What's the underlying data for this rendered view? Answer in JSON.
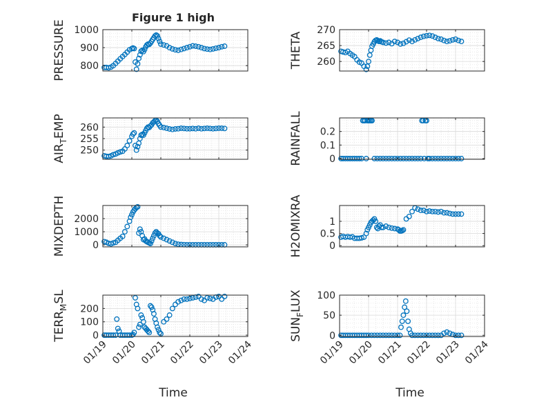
{
  "figure": {
    "title": "Figure 1 high"
  },
  "style": {
    "marker_color": "#0072BD",
    "axis_color": "#262626",
    "grid_color": "#d9d9d9"
  },
  "xaxis": {
    "label": "Time",
    "ticks": [
      "01/19",
      "01/20",
      "01/21",
      "01/22",
      "01/23",
      "01/24"
    ],
    "range": [
      0,
      5
    ]
  },
  "chart_data": [
    {
      "type": "scatter",
      "ylabel": "PRESSURE",
      "ylim": [
        770,
        1000
      ],
      "yticks": [
        "800",
        "900",
        "1000"
      ],
      "ytick_values": [
        800,
        900,
        1000
      ],
      "x": [
        0.05,
        0.12,
        0.2,
        0.28,
        0.36,
        0.44,
        0.52,
        0.6,
        0.68,
        0.76,
        0.84,
        0.92,
        1.0,
        1.04,
        1.08,
        1.12,
        1.16,
        1.2,
        1.24,
        1.28,
        1.32,
        1.36,
        1.4,
        1.44,
        1.48,
        1.52,
        1.56,
        1.6,
        1.64,
        1.68,
        1.72,
        1.76,
        1.8,
        1.84,
        1.88,
        1.92,
        1.96,
        2.0,
        2.1,
        2.2,
        2.3,
        2.4,
        2.5,
        2.6,
        2.7,
        2.8,
        2.9,
        3.0,
        3.1,
        3.2,
        3.3,
        3.4,
        3.5,
        3.6,
        3.7,
        3.8,
        3.9,
        4.0,
        4.1,
        4.2
      ],
      "y": [
        790,
        790,
        788,
        792,
        800,
        812,
        825,
        838,
        850,
        862,
        875,
        888,
        895,
        898,
        895,
        820,
        780,
        810,
        840,
        860,
        880,
        885,
        878,
        890,
        905,
        915,
        920,
        918,
        925,
        935,
        945,
        955,
        965,
        970,
        965,
        950,
        935,
        920,
        915,
        910,
        900,
        893,
        888,
        885,
        890,
        895,
        900,
        905,
        910,
        908,
        905,
        900,
        895,
        892,
        890,
        893,
        897,
        900,
        905,
        908
      ]
    },
    {
      "type": "scatter",
      "ylabel": "THETA",
      "ylim": [
        257,
        270
      ],
      "yticks": [
        "260",
        "265",
        "270"
      ],
      "ytick_values": [
        260,
        265,
        270
      ],
      "x": [
        0.05,
        0.12,
        0.2,
        0.28,
        0.36,
        0.44,
        0.52,
        0.6,
        0.68,
        0.76,
        0.84,
        0.92,
        0.96,
        1.0,
        1.04,
        1.08,
        1.12,
        1.16,
        1.2,
        1.24,
        1.28,
        1.32,
        1.36,
        1.4,
        1.44,
        1.5,
        1.6,
        1.7,
        1.8,
        1.9,
        2.0,
        2.1,
        2.2,
        2.3,
        2.4,
        2.5,
        2.6,
        2.7,
        2.8,
        2.9,
        3.0,
        3.1,
        3.2,
        3.3,
        3.4,
        3.5,
        3.6,
        3.7,
        3.8,
        3.9,
        4.0,
        4.1,
        4.2
      ],
      "y": [
        263.2,
        263.0,
        262.8,
        263.2,
        262.5,
        262.0,
        261.5,
        260.5,
        259.8,
        259.5,
        258.5,
        257.5,
        258.5,
        260.0,
        262.0,
        263.5,
        264.8,
        265.5,
        266.2,
        266.6,
        266.8,
        266.5,
        266.3,
        266.5,
        266.2,
        266.0,
        265.8,
        266.0,
        265.6,
        266.3,
        266.0,
        265.5,
        265.7,
        266.2,
        266.7,
        266.3,
        266.8,
        267.2,
        267.6,
        267.9,
        268.1,
        268.2,
        268.0,
        267.6,
        267.2,
        267.0,
        266.6,
        266.3,
        266.5,
        266.8,
        267.0,
        266.6,
        266.3
      ]
    },
    {
      "type": "scatter",
      "ylabel": "AIR_TEMP",
      "ylim": [
        246,
        264
      ],
      "yticks": [
        "250",
        "255",
        "260"
      ],
      "ytick_values": [
        250,
        255,
        260
      ],
      "x": [
        0.05,
        0.12,
        0.2,
        0.28,
        0.36,
        0.44,
        0.52,
        0.6,
        0.68,
        0.76,
        0.84,
        0.92,
        1.0,
        1.04,
        1.08,
        1.12,
        1.16,
        1.2,
        1.24,
        1.28,
        1.32,
        1.36,
        1.4,
        1.44,
        1.48,
        1.52,
        1.56,
        1.6,
        1.64,
        1.68,
        1.72,
        1.76,
        1.8,
        1.84,
        1.88,
        1.92,
        1.96,
        2.0,
        2.1,
        2.2,
        2.3,
        2.4,
        2.5,
        2.6,
        2.7,
        2.8,
        2.9,
        3.0,
        3.1,
        3.2,
        3.3,
        3.4,
        3.5,
        3.6,
        3.7,
        3.8,
        3.9,
        4.0,
        4.1,
        4.2
      ],
      "y": [
        247.5,
        247.3,
        247.2,
        247.5,
        248.0,
        248.3,
        248.8,
        249.2,
        249.5,
        250.5,
        252.0,
        254.0,
        256.0,
        257.0,
        257.5,
        252.0,
        250.0,
        251.5,
        253.0,
        255.0,
        256.5,
        256.8,
        256.5,
        257.5,
        258.5,
        259.5,
        260.0,
        259.8,
        260.5,
        261.0,
        261.8,
        262.3,
        262.8,
        263.0,
        262.5,
        261.5,
        260.8,
        260.0,
        259.8,
        259.5,
        259.2,
        259.0,
        259.2,
        259.3,
        259.5,
        259.4,
        259.3,
        259.3,
        259.4,
        259.3,
        259.5,
        259.3,
        259.4,
        259.5,
        259.4,
        259.3,
        259.4,
        259.5,
        259.5,
        259.4
      ]
    },
    {
      "type": "scatter",
      "ylabel": "RAINFALL",
      "ylim": [
        -0.005,
        0.3
      ],
      "yticks": [
        "0",
        "0.1",
        "0.2"
      ],
      "ytick_values": [
        0,
        0.1,
        0.2
      ],
      "x": [
        0.05,
        0.12,
        0.2,
        0.28,
        0.36,
        0.44,
        0.52,
        0.6,
        0.68,
        0.76,
        0.8,
        0.84,
        0.88,
        0.92,
        0.96,
        1.0,
        1.04,
        1.08,
        1.12,
        1.2,
        1.3,
        1.4,
        1.5,
        1.6,
        1.7,
        1.8,
        1.9,
        2.0,
        2.1,
        2.2,
        2.3,
        2.4,
        2.5,
        2.6,
        2.7,
        2.8,
        2.84,
        2.88,
        2.92,
        2.96,
        3.0,
        3.04,
        3.1,
        3.2,
        3.3,
        3.4,
        3.5,
        3.6,
        3.7,
        3.8,
        3.9,
        4.0,
        4.1,
        4.2
      ],
      "y": [
        0,
        0,
        0,
        0,
        0,
        0,
        0,
        0,
        0,
        0,
        0.28,
        0.28,
        0.28,
        0,
        0.28,
        0.28,
        0.28,
        0.28,
        0.28,
        0,
        0,
        0,
        0,
        0,
        0,
        0,
        0,
        0,
        0,
        0,
        0,
        0,
        0,
        0,
        0,
        0,
        0.28,
        0.28,
        0,
        0.28,
        0.28,
        0,
        0,
        0,
        0,
        0,
        0,
        0,
        0,
        0,
        0,
        0,
        0,
        0
      ]
    },
    {
      "type": "scatter",
      "ylabel": "MIXDEPTH",
      "ylim": [
        -150,
        3000
      ],
      "yticks": [
        "0",
        "1000",
        "2000"
      ],
      "ytick_values": [
        0,
        1000,
        2000
      ],
      "x": [
        0.05,
        0.12,
        0.2,
        0.28,
        0.36,
        0.44,
        0.52,
        0.6,
        0.68,
        0.76,
        0.84,
        0.92,
        0.96,
        1.0,
        1.04,
        1.08,
        1.12,
        1.16,
        1.2,
        1.24,
        1.28,
        1.32,
        1.36,
        1.4,
        1.44,
        1.48,
        1.52,
        1.56,
        1.6,
        1.64,
        1.68,
        1.72,
        1.76,
        1.8,
        1.84,
        1.88,
        1.92,
        1.96,
        2.0,
        2.1,
        2.2,
        2.3,
        2.4,
        2.5,
        2.6,
        2.7,
        2.8,
        2.9,
        3.0,
        3.1,
        3.2,
        3.3,
        3.4,
        3.5,
        3.6,
        3.7,
        3.8,
        3.9,
        4.0,
        4.1,
        4.2
      ],
      "y": [
        250,
        200,
        120,
        80,
        150,
        200,
        350,
        500,
        650,
        1000,
        1400,
        1800,
        2100,
        2300,
        2500,
        2650,
        2750,
        2850,
        2900,
        900,
        1200,
        1000,
        700,
        400,
        450,
        300,
        250,
        200,
        150,
        100,
        300,
        500,
        700,
        900,
        1000,
        900,
        850,
        700,
        600,
        500,
        400,
        300,
        200,
        100,
        50,
        30,
        20,
        10,
        5,
        5,
        5,
        5,
        5,
        5,
        5,
        5,
        5,
        5,
        5,
        5,
        5
      ]
    },
    {
      "type": "scatter",
      "ylabel": "H2OMIXRA",
      "ylim": [
        -0.05,
        1.65
      ],
      "yticks": [
        "0",
        "0.5",
        "1"
      ],
      "ytick_values": [
        0,
        0.5,
        1
      ],
      "x": [
        0.05,
        0.12,
        0.2,
        0.28,
        0.36,
        0.44,
        0.52,
        0.6,
        0.68,
        0.76,
        0.84,
        0.92,
        0.96,
        1.0,
        1.04,
        1.08,
        1.12,
        1.16,
        1.2,
        1.24,
        1.28,
        1.32,
        1.36,
        1.4,
        1.44,
        1.5,
        1.6,
        1.7,
        1.8,
        1.9,
        2.0,
        2.04,
        2.08,
        2.12,
        2.16,
        2.2,
        2.3,
        2.4,
        2.5,
        2.6,
        2.7,
        2.8,
        2.9,
        3.0,
        3.1,
        3.2,
        3.3,
        3.4,
        3.5,
        3.6,
        3.7,
        3.8,
        3.9,
        4.0,
        4.1,
        4.2
      ],
      "y": [
        0.35,
        0.38,
        0.35,
        0.37,
        0.35,
        0.36,
        0.3,
        0.3,
        0.3,
        0.32,
        0.35,
        0.5,
        0.65,
        0.75,
        0.85,
        0.95,
        1.0,
        1.05,
        1.1,
        1.0,
        0.75,
        0.7,
        0.8,
        0.85,
        0.75,
        0.75,
        0.8,
        0.75,
        0.72,
        0.7,
        0.68,
        0.65,
        0.6,
        0.6,
        0.62,
        0.65,
        1.1,
        1.2,
        1.4,
        1.55,
        1.5,
        1.45,
        1.45,
        1.4,
        1.42,
        1.4,
        1.4,
        1.38,
        1.4,
        1.35,
        1.35,
        1.32,
        1.3,
        1.3,
        1.3,
        1.3
      ]
    },
    {
      "type": "scatter",
      "ylabel": "TERR_MSL",
      "ylim": [
        -10,
        300
      ],
      "yticks": [
        "0",
        "100",
        "200"
      ],
      "ytick_values": [
        0,
        100,
        200
      ],
      "x": [
        0.05,
        0.12,
        0.2,
        0.28,
        0.36,
        0.44,
        0.48,
        0.52,
        0.56,
        0.6,
        0.68,
        0.76,
        0.84,
        0.92,
        1.0,
        1.04,
        1.08,
        1.12,
        1.16,
        1.2,
        1.24,
        1.28,
        1.32,
        1.36,
        1.4,
        1.44,
        1.48,
        1.52,
        1.56,
        1.6,
        1.64,
        1.68,
        1.72,
        1.76,
        1.8,
        1.84,
        1.88,
        1.92,
        1.96,
        2.0,
        2.1,
        2.2,
        2.3,
        2.4,
        2.5,
        2.6,
        2.7,
        2.8,
        2.9,
        3.0,
        3.1,
        3.2,
        3.3,
        3.4,
        3.5,
        3.6,
        3.7,
        3.8,
        3.9,
        4.0,
        4.1,
        4.2
      ],
      "y": [
        0,
        0,
        0,
        0,
        0,
        0,
        120,
        50,
        30,
        0,
        0,
        0,
        0,
        0,
        0,
        5,
        20,
        280,
        230,
        200,
        60,
        80,
        150,
        130,
        100,
        60,
        50,
        40,
        30,
        20,
        220,
        210,
        190,
        160,
        120,
        90,
        60,
        40,
        20,
        10,
        100,
        120,
        150,
        200,
        230,
        250,
        260,
        270,
        270,
        275,
        280,
        285,
        290,
        270,
        260,
        280,
        275,
        270,
        285,
        290,
        270,
        290
      ]
    },
    {
      "type": "scatter",
      "ylabel": "SUN_FLUX",
      "ylim": [
        -3,
        100
      ],
      "yticks": [
        "0",
        "50",
        "100"
      ],
      "ytick_values": [
        0,
        50,
        100
      ],
      "x": [
        0.05,
        0.12,
        0.2,
        0.28,
        0.36,
        0.44,
        0.52,
        0.6,
        0.68,
        0.76,
        0.84,
        0.92,
        1.0,
        1.1,
        1.2,
        1.3,
        1.4,
        1.5,
        1.6,
        1.7,
        1.8,
        1.9,
        2.0,
        2.08,
        2.12,
        2.16,
        2.2,
        2.24,
        2.28,
        2.32,
        2.36,
        2.4,
        2.45,
        2.5,
        2.6,
        2.7,
        2.8,
        2.9,
        3.0,
        3.1,
        3.2,
        3.3,
        3.4,
        3.5,
        3.6,
        3.7,
        3.8,
        3.9,
        4.0,
        4.1,
        4.2
      ],
      "y": [
        0,
        0,
        0,
        0,
        0,
        0,
        0,
        0,
        0,
        0,
        0,
        0,
        0,
        0,
        0,
        0,
        0,
        0,
        0,
        0,
        0,
        0,
        0,
        0,
        20,
        35,
        50,
        70,
        85,
        60,
        35,
        15,
        5,
        0,
        0,
        0,
        0,
        0,
        0,
        0,
        0,
        0,
        0,
        0,
        5,
        8,
        5,
        2,
        0,
        0,
        0
      ]
    }
  ]
}
